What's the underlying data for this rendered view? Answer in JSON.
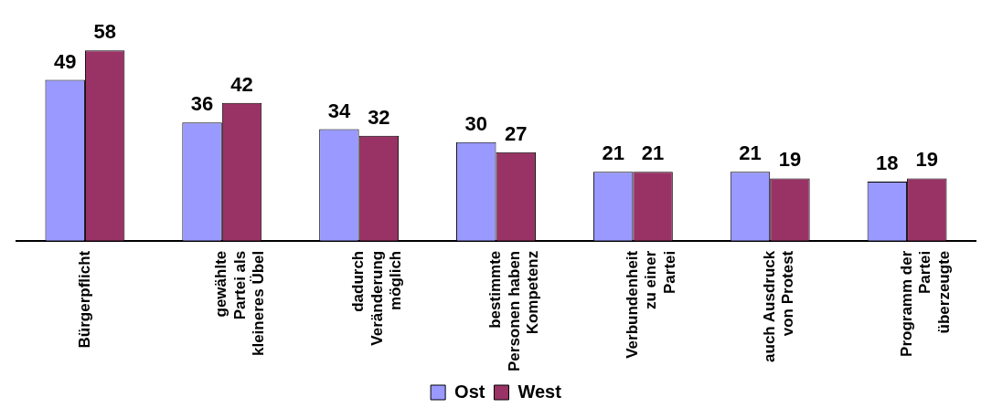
{
  "chart_data": {
    "type": "bar",
    "categories": [
      "Bürgerpflicht",
      "gewählte Partei als kleineres Übel",
      "dadurch Veränderung möglich",
      "bestimmte Personen haben Kompetenz",
      "Verbundenheit zu einer Partei",
      "auch Ausdruck von Protest",
      "Programm der Partei überzeugte"
    ],
    "series": [
      {
        "name": "Ost",
        "color": "#9999ff",
        "values": [
          49,
          36,
          34,
          30,
          21,
          21,
          18
        ]
      },
      {
        "name": "West",
        "color": "#993366",
        "values": [
          58,
          42,
          32,
          27,
          21,
          19,
          19
        ]
      }
    ],
    "data_labels": true,
    "legend": "bottom",
    "grid": false
  }
}
